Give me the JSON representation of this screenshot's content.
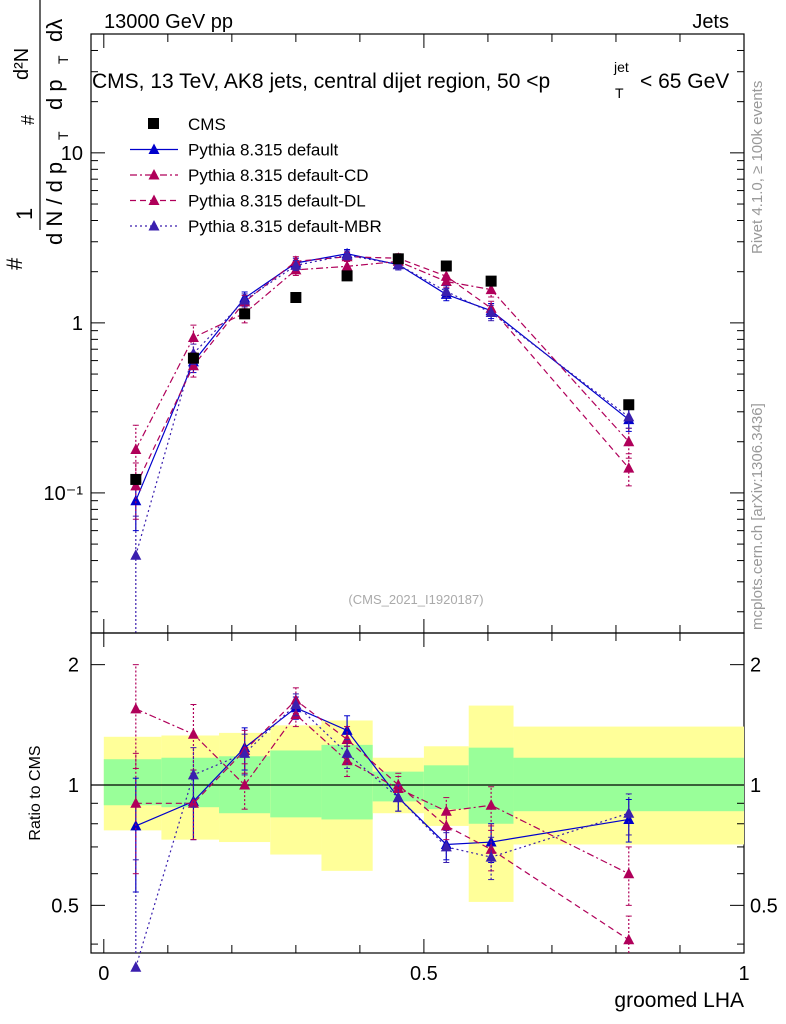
{
  "header": {
    "left": "13000 GeV pp",
    "right": "Jets"
  },
  "side_labels": {
    "rivet": "Rivet 4.1.0, ≥ 100k events",
    "mcplots": "mcplots.cern.ch [arXiv:1306.3436]"
  },
  "watermark": "(CMS_2021_I1920187)",
  "colors": {
    "cms": "#000000",
    "default": "#0000cc",
    "cd": "#b0005a",
    "dl": "#b0005a",
    "mbr": "#3a1fae",
    "band_yellow": "#ffff99",
    "band_green": "#99ff99"
  },
  "chart_data": [
    {
      "type": "scatter",
      "title": "CMS, 13 TeV, AK8 jets, central dijet region, 50 <p_T^{jet}< 65 GeV",
      "title_parts": {
        "main": "CMS, 13 TeV, AK8 jets, central dijet region, 50 <p",
        "sup": "jet",
        "sub": "T",
        "tail": "< 65 GeV"
      },
      "ylabel": "1/(dN/dp_T) d²N/(dp_T dλ)",
      "ylabel_parts": {
        "hash": "#",
        "one": "1",
        "dN": "d N / d p",
        "T": "T",
        "d2N": "d²N",
        "dpT": "d p",
        "dlambda": "dλ"
      },
      "yscale": "log",
      "ylim": [
        0.015,
        50
      ],
      "xlim": [
        -0.02,
        1.0
      ],
      "ytick_labels": {
        "0.1": "10⁻¹",
        "1": "1",
        "10": "10"
      },
      "x": [
        0.05,
        0.14,
        0.22,
        0.3,
        0.38,
        0.46,
        0.535,
        0.605,
        0.82
      ],
      "series": [
        {
          "name": "CMS",
          "marker": "square",
          "values": [
            0.12,
            0.62,
            1.13,
            1.41,
            1.89,
            2.38,
            2.16,
            1.76,
            0.33
          ]
        },
        {
          "name": "Pythia 8.315 default",
          "marker": "triangle",
          "line": "solid",
          "values": [
            0.09,
            0.59,
            1.4,
            2.25,
            2.55,
            2.2,
            1.47,
            1.18,
            0.27
          ],
          "err": [
            0.03,
            0.08,
            0.12,
            0.15,
            0.15,
            0.15,
            0.12,
            0.12,
            0.04
          ]
        },
        {
          "name": "Pythia 8.315 default-CD",
          "marker": "triangle",
          "line": "dashdot",
          "values": [
            0.18,
            0.82,
            1.14,
            2.05,
            2.15,
            2.3,
            1.75,
            1.57,
            0.2
          ],
          "err": [
            0.07,
            0.15,
            0.14,
            0.15,
            0.15,
            0.15,
            0.14,
            0.15,
            0.04
          ]
        },
        {
          "name": "Pythia 8.315 default-DL",
          "marker": "triangle",
          "line": "dashed",
          "values": [
            0.11,
            0.56,
            1.33,
            2.3,
            2.45,
            2.4,
            1.88,
            1.22,
            0.14
          ],
          "err": [
            0.04,
            0.08,
            0.12,
            0.15,
            0.15,
            0.15,
            0.14,
            0.12,
            0.03
          ]
        },
        {
          "name": "Pythia 8.315 default-MBR",
          "marker": "triangle",
          "line": "dotted",
          "values": [
            0.043,
            0.66,
            1.36,
            2.18,
            2.5,
            2.2,
            1.53,
            1.15,
            0.28
          ],
          "err": [
            0.03,
            0.09,
            0.12,
            0.15,
            0.15,
            0.15,
            0.12,
            0.12,
            0.04
          ]
        }
      ]
    },
    {
      "type": "scatter",
      "title": "",
      "xlabel": "groomed LHA",
      "ylabel": "Ratio to CMS",
      "yscale": "log",
      "ylim": [
        0.38,
        2.4
      ],
      "xlim": [
        -0.02,
        1.0
      ],
      "yticks": [
        0.5,
        1,
        2
      ],
      "ytick_labels": [
        "0.5",
        "1",
        "2"
      ],
      "xticks": [
        0,
        0.5,
        1
      ],
      "xtick_labels": [
        "0",
        "0.5",
        "1"
      ],
      "bin_edges": [
        0.0,
        0.09,
        0.18,
        0.26,
        0.34,
        0.42,
        0.5,
        0.57,
        0.64,
        1.0
      ],
      "band_yellow": [
        [
          0.77,
          1.32
        ],
        [
          0.73,
          1.33
        ],
        [
          0.72,
          1.35
        ],
        [
          0.67,
          1.41
        ],
        [
          0.61,
          1.45
        ],
        [
          0.85,
          1.17
        ],
        [
          0.79,
          1.25
        ],
        [
          0.51,
          1.58
        ],
        [
          0.71,
          1.4
        ]
      ],
      "band_green": [
        [
          0.89,
          1.16
        ],
        [
          0.88,
          1.17
        ],
        [
          0.85,
          1.18
        ],
        [
          0.83,
          1.22
        ],
        [
          0.82,
          1.26
        ],
        [
          0.91,
          1.08
        ],
        [
          0.87,
          1.12
        ],
        [
          0.8,
          1.24
        ],
        [
          0.86,
          1.17
        ]
      ],
      "x": [
        0.05,
        0.14,
        0.22,
        0.3,
        0.38,
        0.46,
        0.535,
        0.605,
        0.82
      ],
      "series": [
        {
          "name": "Pythia 8.315 default",
          "values": [
            0.79,
            0.91,
            1.24,
            1.56,
            1.37,
            0.93,
            0.71,
            0.72,
            0.82
          ],
          "err": [
            0.25,
            0.18,
            0.15,
            0.1,
            0.12,
            0.07,
            0.06,
            0.08,
            0.1
          ]
        },
        {
          "name": "Pythia 8.315 default-CD",
          "values": [
            1.55,
            1.34,
            1.0,
            1.5,
            1.15,
            0.98,
            0.86,
            0.89,
            0.6
          ],
          "err": [
            0.45,
            0.25,
            0.13,
            0.1,
            0.1,
            0.07,
            0.07,
            0.1,
            0.1
          ]
        },
        {
          "name": "Pythia 8.315 default-DL",
          "values": [
            0.9,
            0.9,
            1.22,
            1.63,
            1.3,
            1.0,
            0.79,
            0.69,
            0.41
          ],
          "err": [
            0.3,
            0.17,
            0.15,
            0.12,
            0.1,
            0.07,
            0.06,
            0.08,
            0.06
          ]
        },
        {
          "name": "Pythia 8.315 default-MBR",
          "values": [
            0.35,
            1.06,
            1.2,
            1.59,
            1.2,
            0.93,
            0.7,
            0.66,
            0.85
          ],
          "err": [
            0.3,
            0.18,
            0.14,
            0.1,
            0.1,
            0.07,
            0.06,
            0.08,
            0.1
          ]
        }
      ]
    }
  ]
}
